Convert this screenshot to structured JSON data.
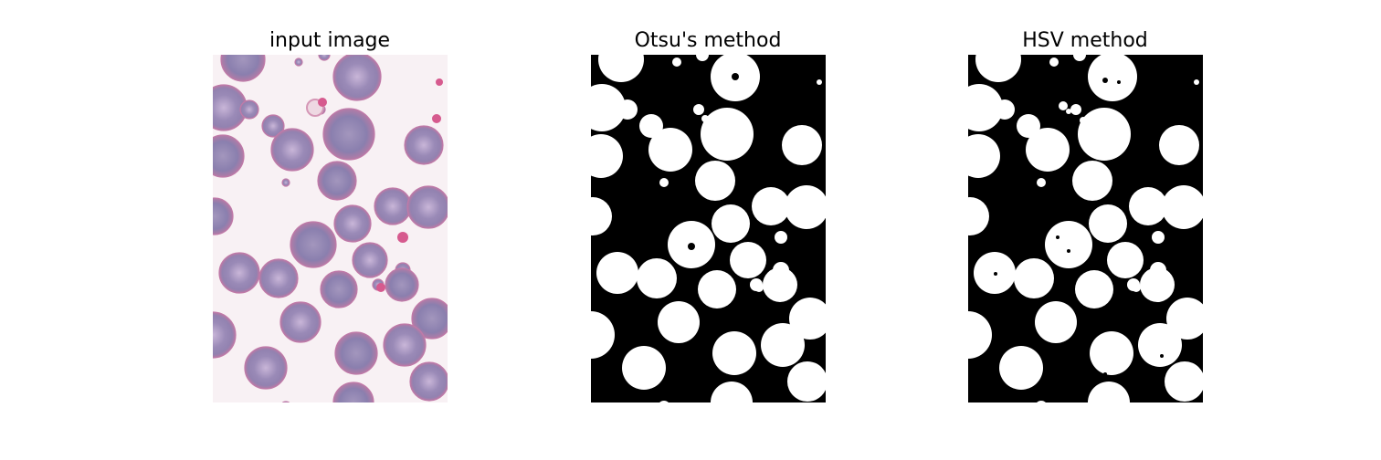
{
  "figure": {
    "panels": [
      {
        "title": "input image",
        "kind": "photo"
      },
      {
        "title": "Otsu's method",
        "kind": "binary-mask"
      },
      {
        "title": "HSV method",
        "kind": "binary-mask"
      }
    ]
  },
  "colors": {
    "photo_background": "#f8f1f4",
    "cell_fill": "#9585b2",
    "cell_edge": "#c07aa8",
    "cell_center": "#c8b4d6",
    "stained_cell": "#d65a8e",
    "mask_background": "#000000",
    "mask_foreground": "#ffffff"
  }
}
